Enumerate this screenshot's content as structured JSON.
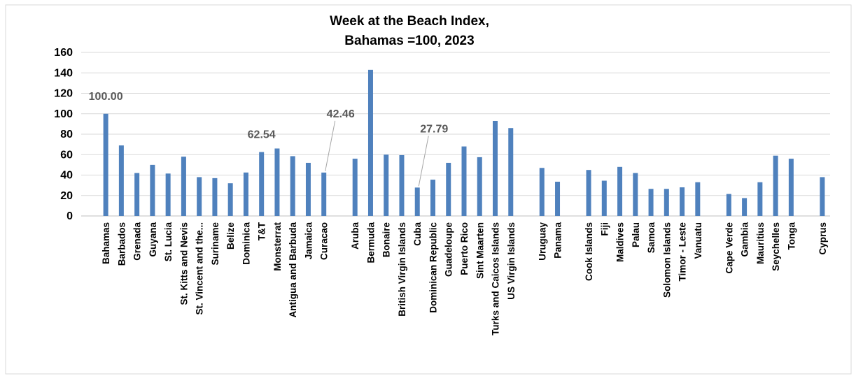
{
  "chart_data": {
    "type": "bar",
    "title": [
      "Week at the Beach Index,",
      "Bahamas =100, 2023"
    ],
    "categories": [
      "Bahamas",
      "Barbados",
      "Grenada",
      "Guyana",
      "St. Lucia",
      "St. Kitts and Nevis",
      "St. Vincent and the...",
      "Suriname",
      "Belize",
      "Dominica",
      "T&T",
      "Monsterrat",
      "Antigua and Barbuda",
      "Jamaica",
      "Curacao",
      null,
      "Aruba",
      "Bermuda",
      "Bonaire",
      "British Virgin Islands",
      "Cuba",
      "Dominican Republic",
      "Guadeloupe",
      "Puerto Rico",
      "Sint Maarten",
      "Turks and Caicos Islands",
      "US Virgin Islands",
      null,
      "Uruguay",
      "Panama",
      null,
      "Cook Islands",
      "Fiji",
      "Maldives",
      "Palau",
      "Samoa",
      "Solomon Islands",
      "Timor - Leste",
      "Vanuatu",
      null,
      "Cape Verde",
      "Gambia",
      "Mauritius",
      "Seychelles",
      "Tonga",
      null,
      "Cyprus"
    ],
    "values": [
      100,
      69,
      42,
      50,
      41.5,
      58,
      38,
      37,
      32,
      42.5,
      62.54,
      66,
      58.5,
      52,
      42.46,
      null,
      56,
      143,
      60,
      59.5,
      27.79,
      35.5,
      52,
      68,
      57.5,
      93,
      86,
      null,
      47,
      33.5,
      null,
      45,
      34.5,
      48,
      42,
      26.5,
      26.5,
      28,
      33,
      null,
      21.5,
      17.5,
      33,
      59,
      56,
      null,
      38
    ],
    "value_labels": [
      "100.00",
      null,
      null,
      null,
      null,
      null,
      null,
      null,
      null,
      null,
      "62.54",
      null,
      null,
      null,
      "42.46",
      null,
      null,
      null,
      null,
      null,
      "27.79",
      null,
      null,
      null,
      null,
      null,
      null,
      null,
      null,
      null,
      null,
      null,
      null,
      null,
      null,
      null,
      null,
      null,
      null,
      null,
      null,
      null,
      null,
      null,
      null,
      null,
      null
    ],
    "color": "#4f81bd",
    "ylim": [
      0,
      160
    ],
    "yticks": [
      0,
      20,
      40,
      60,
      80,
      100,
      120,
      140,
      160
    ],
    "grid": true
  }
}
